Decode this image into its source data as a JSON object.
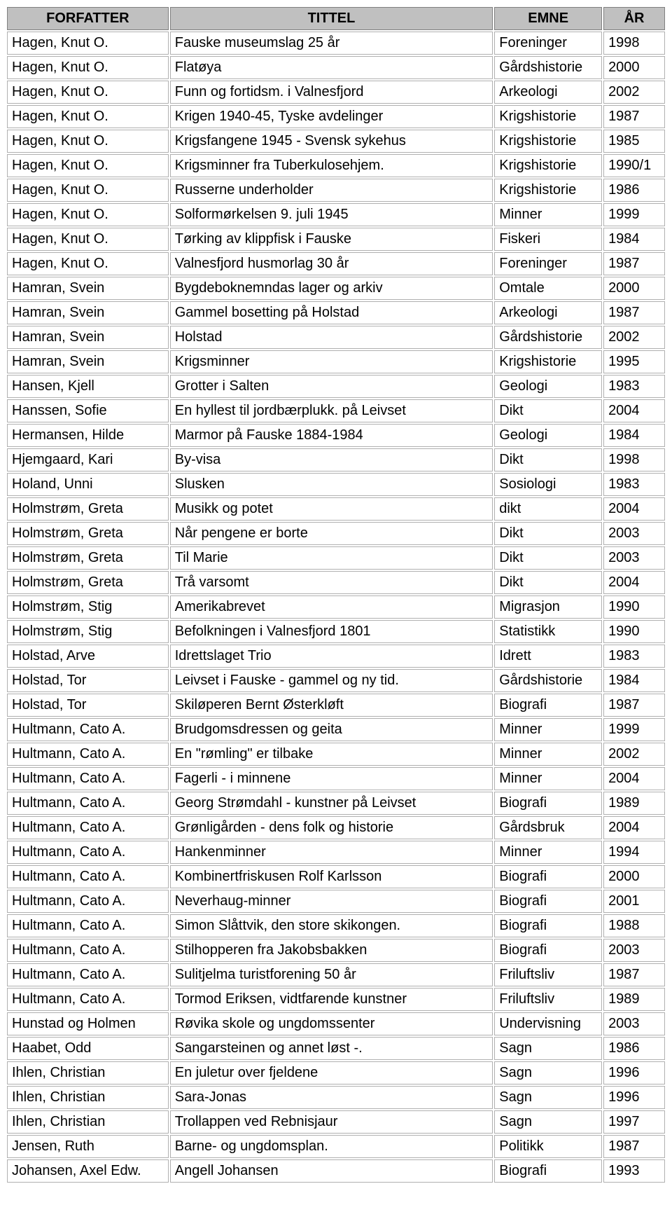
{
  "table": {
    "columns": [
      "FORFATTER",
      "TITTEL",
      "EMNE",
      "ÅR"
    ],
    "header_bg": "#c0c0c0",
    "border_color": "#808080",
    "cell_border_color": "#b0b0b0",
    "font_size": 20,
    "rows": [
      [
        "Hagen, Knut O.",
        "Fauske museumslag 25 år",
        "Foreninger",
        "1998"
      ],
      [
        "Hagen, Knut O.",
        "Flatøya",
        "Gårdshistorie",
        "2000"
      ],
      [
        "Hagen, Knut O.",
        "Funn og fortidsm. i Valnesfjord",
        "Arkeologi",
        "2002"
      ],
      [
        "Hagen, Knut O.",
        "Krigen 1940-45, Tyske avdelinger",
        "Krigshistorie",
        "1987"
      ],
      [
        "Hagen, Knut O.",
        "Krigsfangene 1945 - Svensk sykehus",
        "Krigshistorie",
        "1985"
      ],
      [
        "Hagen, Knut O.",
        "Krigsminner fra Tuberkulosehjem.",
        "Krigshistorie",
        "1990/1"
      ],
      [
        "Hagen, Knut O.",
        "Russerne underholder",
        "Krigshistorie",
        "1986"
      ],
      [
        "Hagen, Knut O.",
        "Solformørkelsen 9. juli 1945",
        "Minner",
        "1999"
      ],
      [
        "Hagen, Knut O.",
        "Tørking av klippfisk i Fauske",
        "Fiskeri",
        "1984"
      ],
      [
        "Hagen, Knut O.",
        "Valnesfjord husmorlag 30 år",
        "Foreninger",
        "1987"
      ],
      [
        "Hamran, Svein",
        "Bygdeboknemndas lager og arkiv",
        "Omtale",
        "2000"
      ],
      [
        "Hamran, Svein",
        "Gammel bosetting på Holstad",
        "Arkeologi",
        "1987"
      ],
      [
        "Hamran, Svein",
        "Holstad",
        "Gårdshistorie",
        "2002"
      ],
      [
        "Hamran, Svein",
        "Krigsminner",
        "Krigshistorie",
        "1995"
      ],
      [
        "Hansen, Kjell",
        "Grotter i Salten",
        "Geologi",
        "1983"
      ],
      [
        "Hanssen, Sofie",
        "En hyllest til jordbærplukk. på Leivset",
        "Dikt",
        "2004"
      ],
      [
        "Hermansen, Hilde",
        "Marmor på Fauske 1884-1984",
        "Geologi",
        "1984"
      ],
      [
        "Hjemgaard, Kari",
        "By-visa",
        "Dikt",
        "1998"
      ],
      [
        "Holand, Unni",
        "Slusken",
        "Sosiologi",
        "1983"
      ],
      [
        "Holmstrøm, Greta",
        "Musikk og potet",
        "dikt",
        "2004"
      ],
      [
        "Holmstrøm, Greta",
        "Når pengene er borte",
        "Dikt",
        "2003"
      ],
      [
        "Holmstrøm, Greta",
        "Til Marie",
        "Dikt",
        "2003"
      ],
      [
        "Holmstrøm, Greta",
        "Trå varsomt",
        "Dikt",
        "2004"
      ],
      [
        "Holmstrøm, Stig",
        "Amerikabrevet",
        "Migrasjon",
        "1990"
      ],
      [
        "Holmstrøm, Stig",
        "Befolkningen i Valnesfjord 1801",
        "Statistikk",
        "1990"
      ],
      [
        "Holstad, Arve",
        "Idrettslaget Trio",
        "Idrett",
        "1983"
      ],
      [
        "Holstad, Tor",
        "Leivset i Fauske - gammel og ny tid.",
        "Gårdshistorie",
        "1984"
      ],
      [
        "Holstad, Tor",
        "Skiløperen Bernt Østerkløft",
        "Biografi",
        "1987"
      ],
      [
        "Hultmann, Cato A.",
        "Brudgomsdressen og geita",
        "Minner",
        "1999"
      ],
      [
        "Hultmann, Cato A.",
        "En \"rømling\" er tilbake",
        "Minner",
        "2002"
      ],
      [
        "Hultmann, Cato A.",
        "Fagerli - i minnene",
        "Minner",
        "2004"
      ],
      [
        "Hultmann, Cato A.",
        "Georg Strømdahl - kunstner på Leivset",
        "Biografi",
        "1989"
      ],
      [
        "Hultmann, Cato A.",
        "Grønligården - dens folk og historie",
        "Gårdsbruk",
        "2004"
      ],
      [
        "Hultmann, Cato A.",
        "Hankenminner",
        "Minner",
        "1994"
      ],
      [
        "Hultmann, Cato A.",
        "Kombinertfriskusen Rolf Karlsson",
        "Biografi",
        "2000"
      ],
      [
        "Hultmann, Cato A.",
        "Neverhaug-minner",
        "Biografi",
        "2001"
      ],
      [
        "Hultmann, Cato A.",
        "Simon Slåttvik, den store skikongen.",
        "Biografi",
        "1988"
      ],
      [
        "Hultmann, Cato A.",
        "Stilhopperen fra Jakobsbakken",
        "Biografi",
        "2003"
      ],
      [
        "Hultmann, Cato A.",
        "Sulitjelma turistforening 50 år",
        "Friluftsliv",
        "1987"
      ],
      [
        "Hultmann, Cato A.",
        "Tormod Eriksen, vidtfarende kunstner",
        "Friluftsliv",
        "1989"
      ],
      [
        "Hunstad og Holmen",
        "Røvika skole og ungdomssenter",
        "Undervisning",
        "2003"
      ],
      [
        "Haabet, Odd",
        "Sangarsteinen og annet løst -.",
        "Sagn",
        "1986"
      ],
      [
        "Ihlen, Christian",
        "En juletur over fjeldene",
        "Sagn",
        "1996"
      ],
      [
        "Ihlen, Christian",
        "Sara-Jonas",
        "Sagn",
        "1996"
      ],
      [
        "Ihlen, Christian",
        "Trollappen ved Rebnisjaur",
        "Sagn",
        "1997"
      ],
      [
        "Jensen, Ruth",
        "Barne- og ungdomsplan.",
        "Politikk",
        "1987"
      ],
      [
        "Johansen, Axel Edw.",
        "Angell Johansen",
        "Biografi",
        "1993"
      ]
    ]
  }
}
